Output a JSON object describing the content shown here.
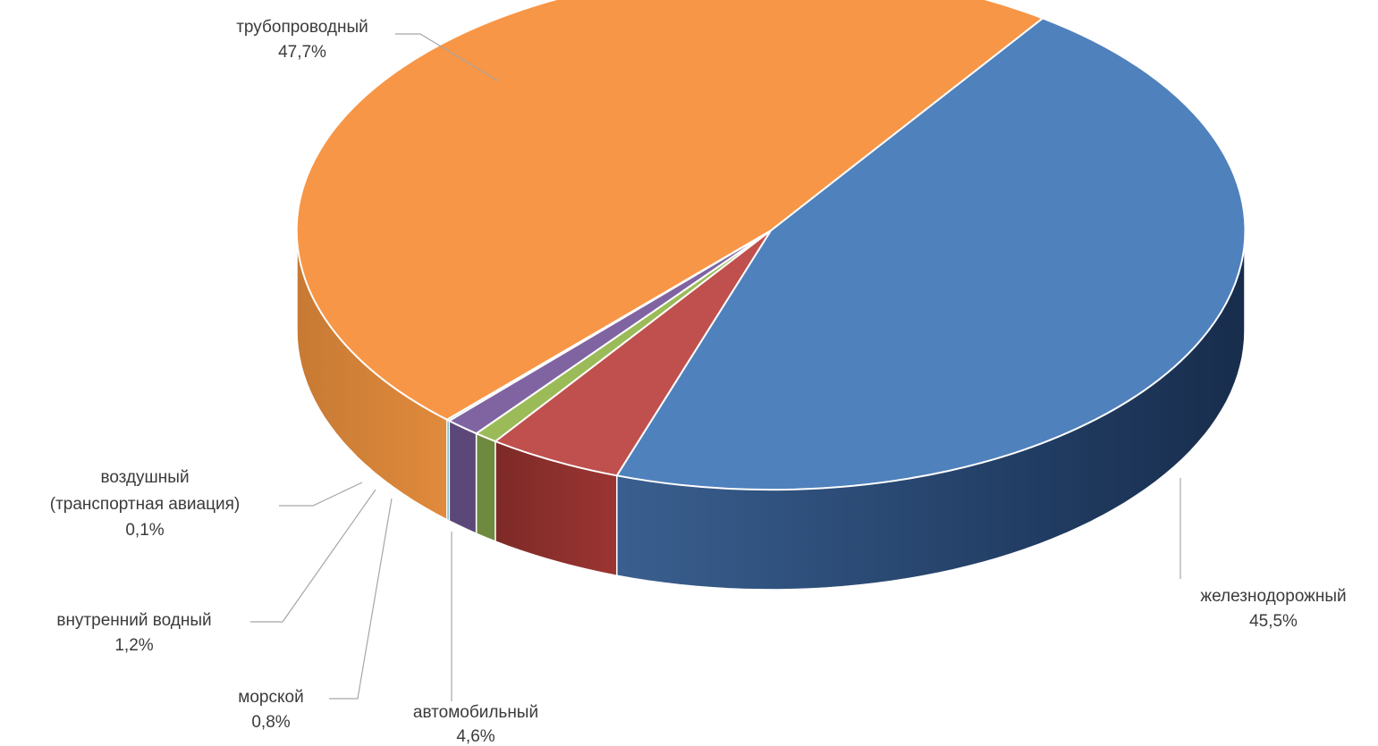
{
  "chart_data": {
    "type": "pie",
    "style": "3d-exploded-perspective",
    "legend": "none",
    "slices": [
      {
        "label": "железнодорожный",
        "value_text": "45,5%",
        "value": 45.5,
        "color": "#4f81bd"
      },
      {
        "label": "автомобильный",
        "value_text": "4,6%",
        "value": 4.6,
        "color": "#c0504d"
      },
      {
        "label": "морской",
        "value_text": "0,8%",
        "value": 0.8,
        "color": "#9bbb59"
      },
      {
        "label": "внутренний  водный",
        "value_text": "1,2%",
        "value": 1.2,
        "color": "#8064a2"
      },
      {
        "label_lines": [
          "воздушный",
          "(транспортная  авиация)"
        ],
        "label": "воздушный (транспортная  авиация)",
        "value_text": "0,1%",
        "value": 0.1,
        "color": "#4bacc6"
      },
      {
        "label": "трубопроводный",
        "value_text": "47,7%",
        "value": 47.7,
        "color": "#f79646"
      }
    ]
  }
}
